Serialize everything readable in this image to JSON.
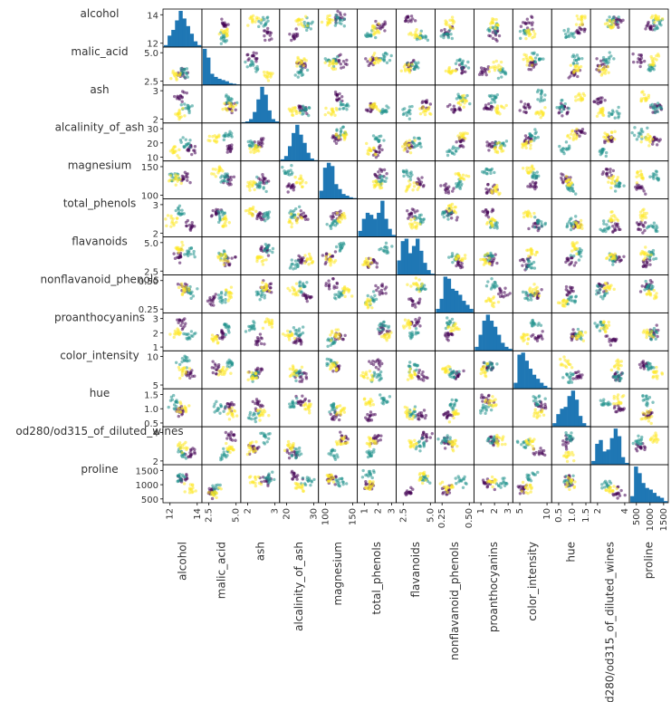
{
  "chart_data": {
    "type": "scatter",
    "subtype": "scatter_matrix",
    "diagonal": "hist",
    "color_by_class": true,
    "class_colors": [
      "#440154",
      "#21918c",
      "#fde725"
    ],
    "variables": [
      {
        "name": "alcohol",
        "row_ticks": [
          "14",
          "12"
        ],
        "col_ticks": [
          "12",
          "14"
        ],
        "hist": [
          2,
          12,
          18,
          28,
          38,
          30,
          22,
          14,
          6,
          2
        ]
      },
      {
        "name": "malic_acid",
        "row_ticks": [
          "5.0",
          "2.5"
        ],
        "col_ticks": [
          "2.5",
          "5.0"
        ],
        "hist": [
          58,
          44,
          18,
          13,
          10,
          8,
          6,
          3,
          2,
          1
        ]
      },
      {
        "name": "ash",
        "row_ticks": [
          "3",
          "2"
        ],
        "col_ticks": [
          "2",
          "3"
        ],
        "hist": [
          1,
          2,
          5,
          14,
          30,
          46,
          36,
          16,
          5,
          2
        ]
      },
      {
        "name": "alcalinity_of_ash",
        "row_ticks": [
          "30",
          "20",
          "10"
        ],
        "col_ticks": [
          "20",
          "30"
        ],
        "hist": [
          2,
          6,
          18,
          34,
          44,
          32,
          22,
          10,
          3,
          1
        ]
      },
      {
        "name": "magnesium",
        "row_ticks": [
          "150",
          "100"
        ],
        "col_ticks": [
          "100",
          "150"
        ],
        "hist": [
          10,
          38,
          44,
          40,
          18,
          12,
          6,
          4,
          2,
          1
        ]
      },
      {
        "name": "total_phenols",
        "row_ticks": [
          "3",
          "2"
        ],
        "col_ticks": [
          "1",
          "2",
          "3"
        ],
        "hist": [
          6,
          18,
          24,
          22,
          18,
          24,
          36,
          18,
          8,
          2
        ]
      },
      {
        "name": "flavanoids",
        "row_ticks": [
          "5.0",
          "2.5"
        ],
        "col_ticks": [
          "2.5",
          "5.0"
        ],
        "hist": [
          12,
          28,
          30,
          18,
          24,
          30,
          20,
          10,
          4,
          1
        ]
      },
      {
        "name": "nonflavanoid_phenols",
        "row_ticks": [
          "0.50",
          "0.25"
        ],
        "col_ticks": [
          "0.25",
          "0.50"
        ],
        "hist": [
          4,
          14,
          36,
          34,
          24,
          22,
          18,
          12,
          8,
          4
        ]
      },
      {
        "name": "proanthocyanins",
        "row_ticks": [
          "3",
          "2",
          "1"
        ],
        "col_ticks": [
          "1",
          "2",
          "3"
        ],
        "hist": [
          4,
          16,
          30,
          36,
          30,
          24,
          16,
          8,
          4,
          2
        ]
      },
      {
        "name": "color_intensity",
        "row_ticks": [
          "10",
          "5"
        ],
        "col_ticks": [
          "5",
          "10"
        ],
        "hist": [
          6,
          34,
          36,
          28,
          20,
          14,
          10,
          6,
          3,
          1
        ]
      },
      {
        "name": "hue",
        "row_ticks": [
          "1.5",
          "1.0",
          "0.5"
        ],
        "col_ticks": [
          "0.5",
          "1.0",
          "1.5"
        ],
        "hist": [
          4,
          14,
          20,
          22,
          34,
          40,
          30,
          12,
          4,
          1
        ]
      },
      {
        "name": "od280/od315_of_diluted_wines",
        "row_ticks": [
          "4",
          "2"
        ],
        "col_ticks": [
          "2",
          "4"
        ],
        "hist": [
          4,
          22,
          26,
          14,
          16,
          28,
          38,
          30,
          8,
          2
        ]
      },
      {
        "name": "proline",
        "row_ticks": [
          "1500",
          "1000",
          "500"
        ],
        "col_ticks": [
          "500",
          "1000",
          "1500"
        ],
        "hist": [
          8,
          44,
          36,
          24,
          18,
          16,
          12,
          8,
          6,
          2
        ]
      }
    ]
  }
}
